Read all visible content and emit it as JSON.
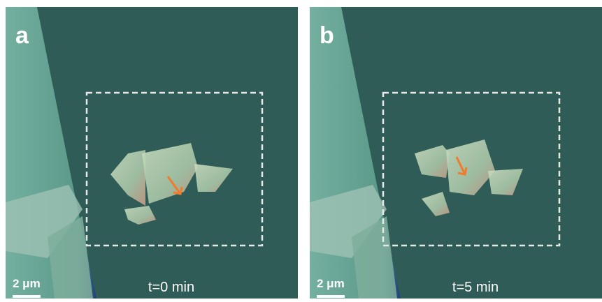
{
  "panels": [
    {
      "label": "a",
      "scale_bar": "2 μm",
      "time": "t=0 min"
    },
    {
      "label": "b",
      "scale_bar": "2 μm",
      "time": "t=5 min"
    }
  ]
}
